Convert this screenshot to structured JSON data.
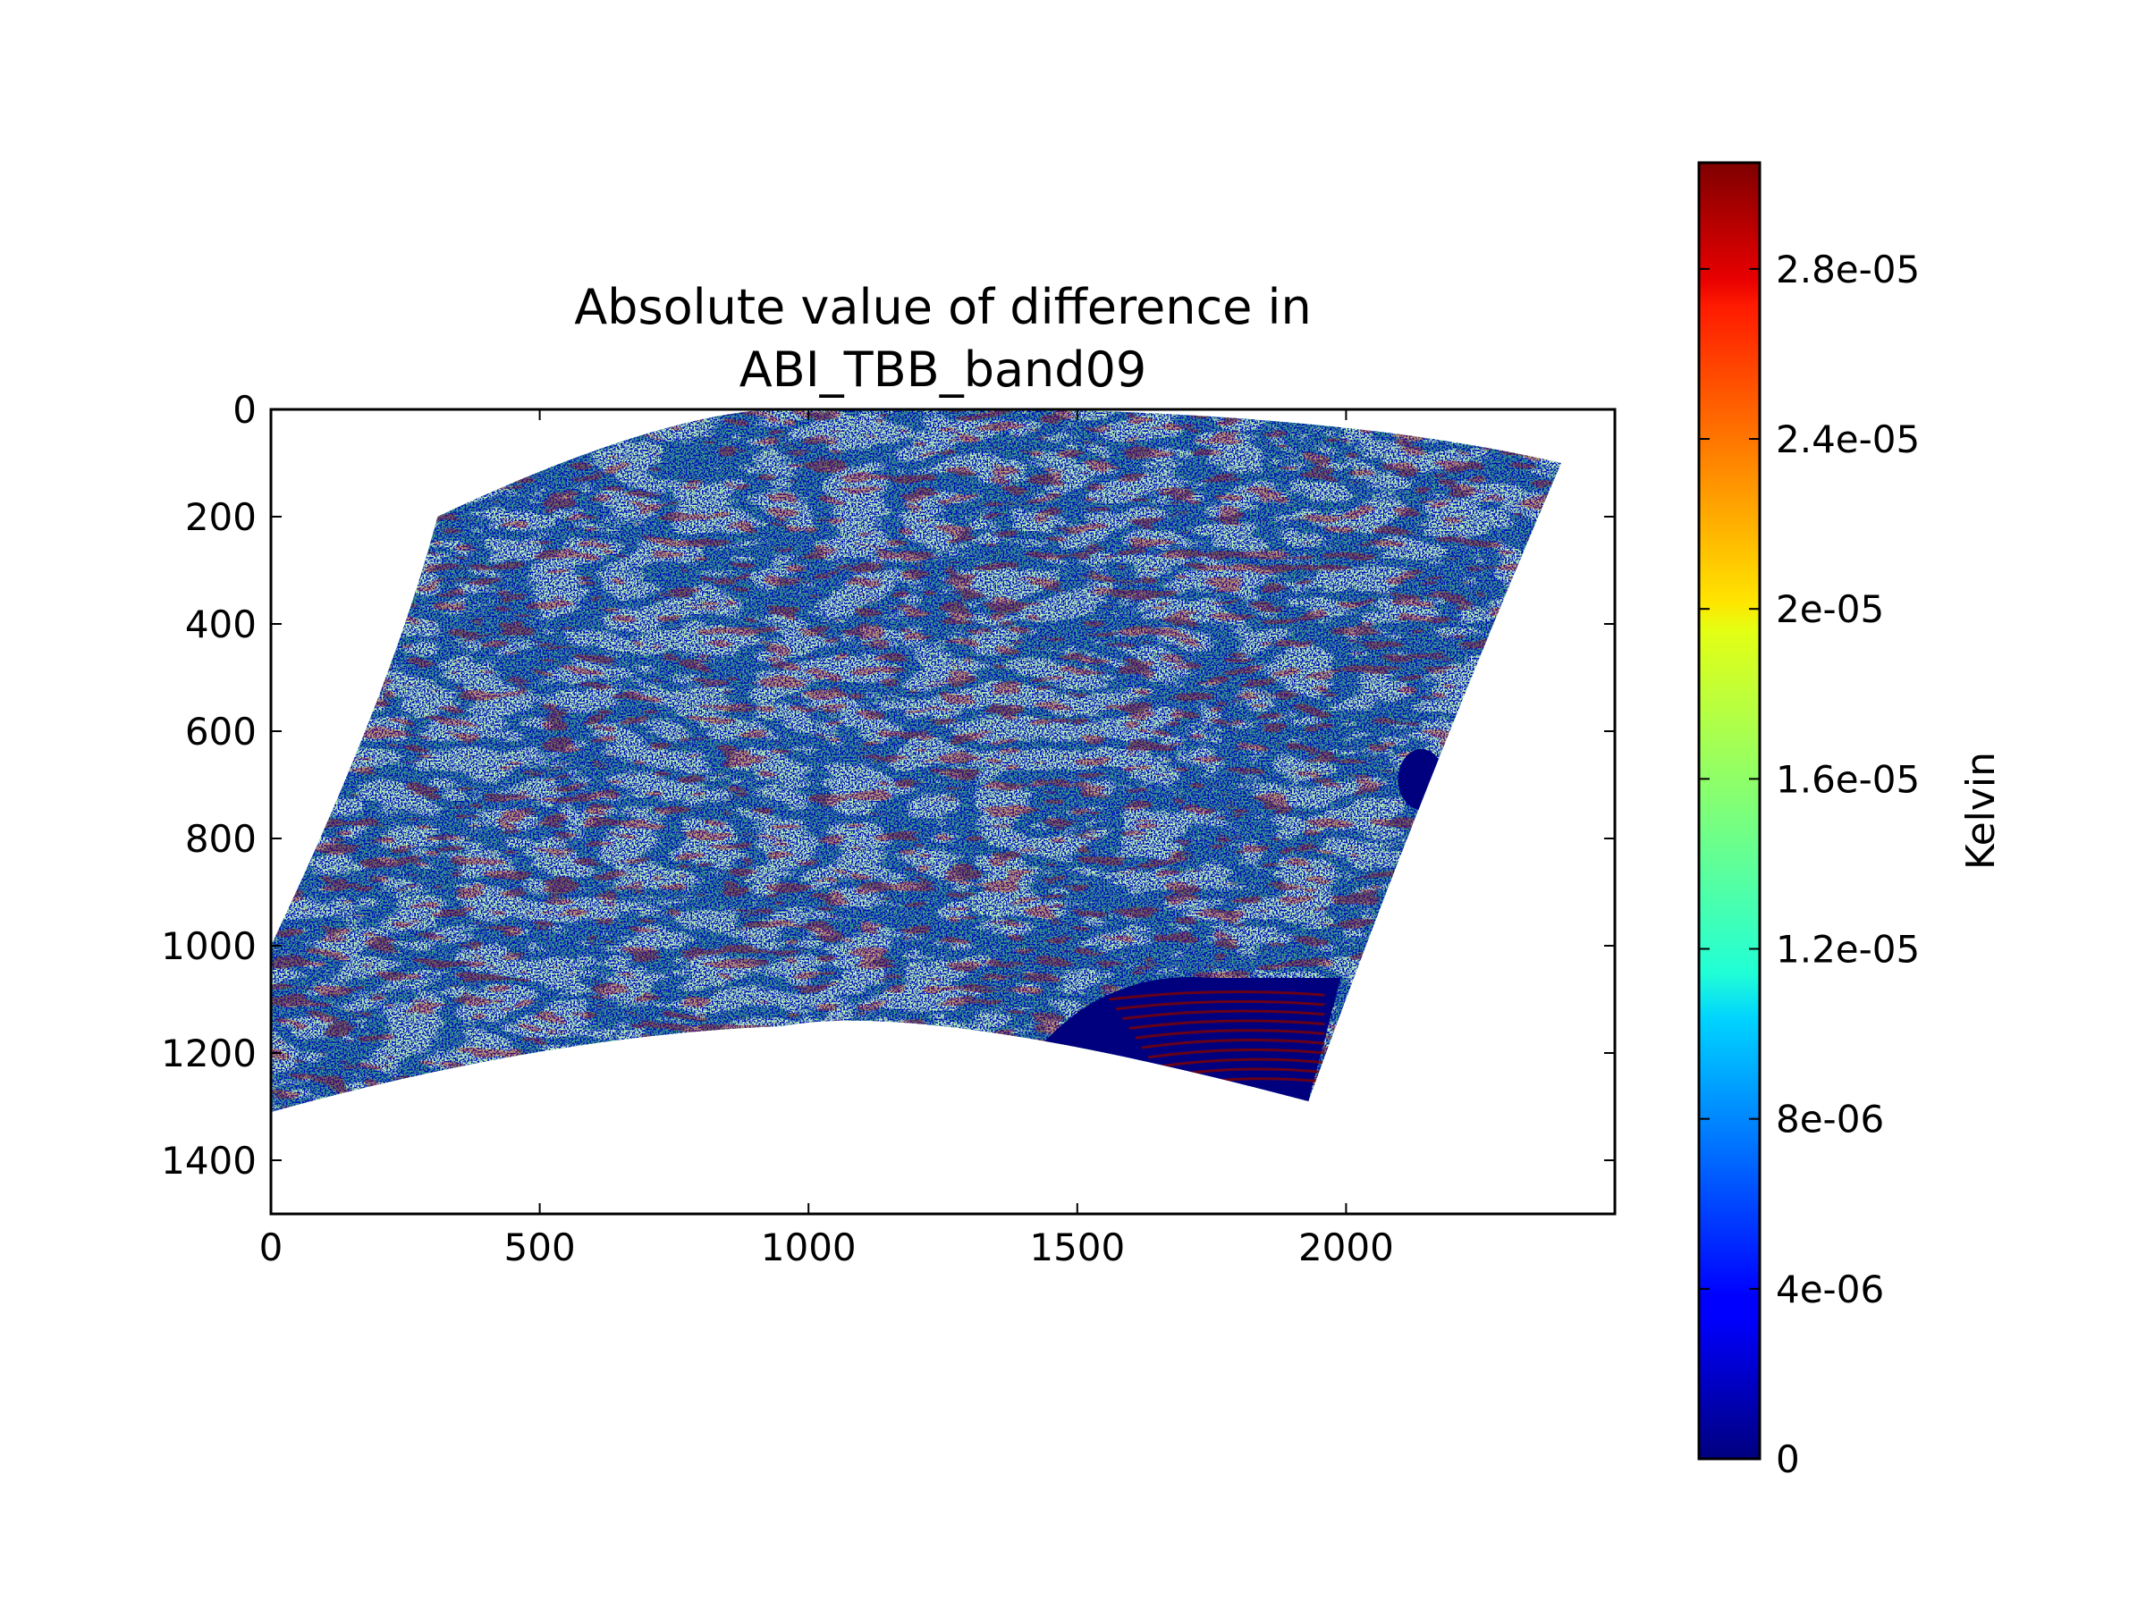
{
  "chart_data": {
    "type": "heatmap",
    "title": [
      "Absolute value of difference in",
      "ABI_TBB_band09"
    ],
    "xlabel": "",
    "ylabel": "",
    "xlim": [
      0,
      2500
    ],
    "ylim": [
      1500,
      0
    ],
    "x_ticks": [
      0,
      500,
      1000,
      1500,
      2000
    ],
    "y_ticks": [
      0,
      200,
      400,
      600,
      800,
      1000,
      1200,
      1400
    ],
    "grid": false,
    "colormap": "jet",
    "colorbar": {
      "label": "Kelvin",
      "range": [
        0,
        3.05e-05
      ],
      "ticks": [
        "0",
        "4e-06",
        "8e-06",
        "1.2e-05",
        "1.6e-05",
        "2e-05",
        "2.4e-05",
        "2.8e-05"
      ],
      "tick_values": [
        0,
        4e-06,
        8e-06,
        1.2e-05,
        1.6e-05,
        2e-05,
        2.4e-05,
        2.8e-05
      ]
    },
    "data_region": {
      "description": "curved swath of noisy per-pixel differences, dominated by values near 0 and ~1.5e-05, with patches of ~3e-05",
      "top_left": [
        310,
        200
      ],
      "top_peak": [
        1000,
        0
      ],
      "top_right": [
        2400,
        100
      ],
      "bottom_right": [
        1930,
        1290
      ],
      "bottom_dip": [
        950,
        1150
      ],
      "bottom_left": [
        0,
        1310
      ],
      "left_top": [
        0,
        1000
      ]
    },
    "dominant_values": [
      0,
      1.5e-05,
      3e-05
    ]
  },
  "colors": {
    "dark_blue": "#00007f",
    "green": "#7dfc7a",
    "teal": "#4fc9a4",
    "red": "#800000",
    "orange": "#ff6a00"
  }
}
